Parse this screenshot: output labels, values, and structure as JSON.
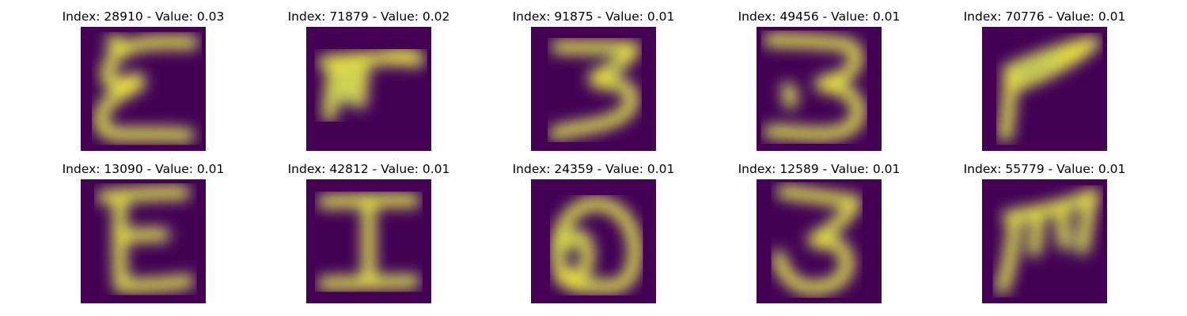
{
  "colors": {
    "background": "#440154",
    "stroke_edge": "#21918c",
    "stroke_mid": "#5ec962",
    "stroke_core": "#fde725"
  },
  "panels": [
    {
      "title": "Index: 28910 - Value: 0.03",
      "glyph": "ξ-like epsilon stroke"
    },
    {
      "title": "Index: 71879 - Value: 0.02",
      "glyph": "π-like stroke"
    },
    {
      "title": "Index: 91875 - Value: 0.01",
      "glyph": "3-like stroke"
    },
    {
      "title": "Index: 49456 - Value: 0.01",
      "glyph": "3-like stroke"
    },
    {
      "title": "Index: 70776 - Value: 0.01",
      "glyph": "angular P-like stroke"
    },
    {
      "title": "Index: 13090 - Value: 0.01",
      "glyph": "E-like stroke"
    },
    {
      "title": "Index: 42812 - Value: 0.01",
      "glyph": "I-like stroke"
    },
    {
      "title": "Index: 24359 - Value: 0.01",
      "glyph": "looped stroke"
    },
    {
      "title": "Index: 12589 - Value: 0.01",
      "glyph": "3-like stroke"
    },
    {
      "title": "Index: 55779 - Value: 0.01",
      "glyph": "M-like stroke"
    }
  ]
}
